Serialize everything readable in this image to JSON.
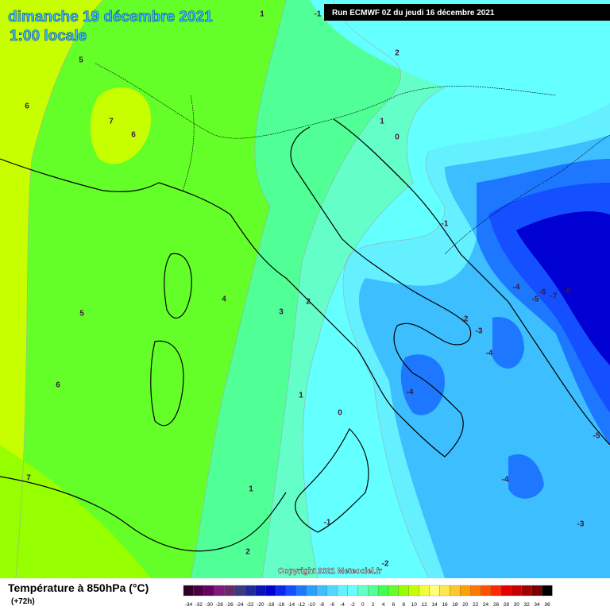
{
  "header": {
    "title": "dimanche 19 décembre 2021",
    "subtitle": "1:00 locale",
    "run": "Run ECMWF 0Z du jeudi 16 décembre 2021"
  },
  "map": {
    "contour_labels": [
      1,
      -1,
      5,
      2,
      6,
      7,
      6,
      1,
      0,
      -1,
      -4,
      -5,
      -6,
      -7,
      -8,
      4,
      2,
      3,
      5,
      -2,
      -3,
      -4,
      6,
      1,
      -4,
      0,
      -5,
      7,
      -4,
      1,
      -1,
      -3,
      2,
      -2
    ],
    "copyright": "Copyright 2021 Meteociel.fr"
  },
  "footer": {
    "title": "Température à 850hPa (°C)",
    "lead": "(+72h)",
    "scale": {
      "labels": [
        -34,
        -32,
        -30,
        -28,
        -26,
        -24,
        -22,
        -20,
        -18,
        -16,
        -14,
        -12,
        -10,
        -8,
        -6,
        -4,
        -2,
        0,
        2,
        4,
        6,
        8,
        10,
        12,
        14,
        16,
        18,
        20,
        22,
        24,
        26,
        28,
        30,
        32,
        34,
        36
      ],
      "colors": [
        "#2d0024",
        "#4a0040",
        "#6a0060",
        "#7d1a7d",
        "#6a2a6a",
        "#3a3a80",
        "#1e2a9a",
        "#0a14b4",
        "#0000d2",
        "#0a28f0",
        "#1450ff",
        "#1e78ff",
        "#28a0ff",
        "#3cbeff",
        "#50d8ff",
        "#64f0ff",
        "#64ffff",
        "#64ffc8",
        "#50ff96",
        "#3cff50",
        "#64ff28",
        "#96ff00",
        "#c8ff00",
        "#f0ff3c",
        "#ffff78",
        "#ffe650",
        "#ffc828",
        "#ffa000",
        "#ff7800",
        "#ff5000",
        "#ff2800",
        "#e60000",
        "#c80000",
        "#a00000",
        "#780000",
        "#000000"
      ]
    }
  }
}
